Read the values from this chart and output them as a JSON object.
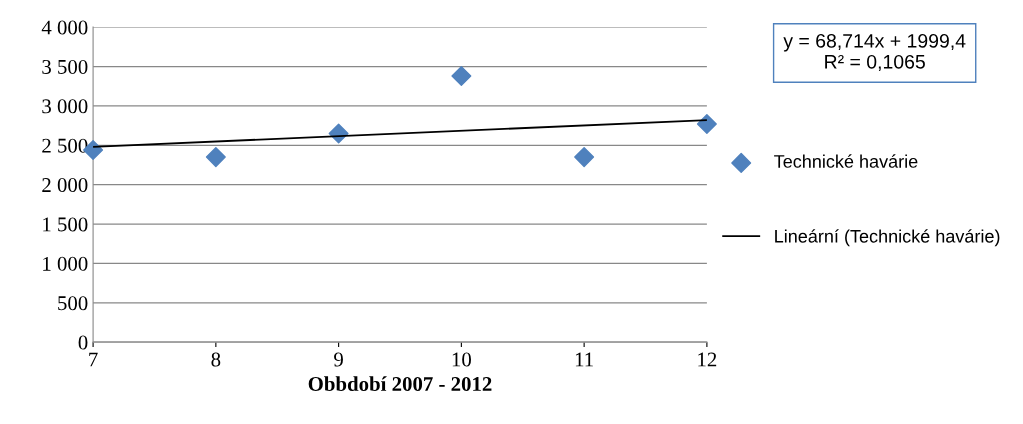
{
  "chart_data": {
    "type": "scatter",
    "xlabel": "Obbdobí 2007 - 2012",
    "x": [
      7,
      8,
      9,
      10,
      11,
      12
    ],
    "series": [
      {
        "name": "Technické havárie",
        "color": "#4f81bd",
        "marker": "diamond",
        "values": [
          2440,
          2350,
          2650,
          3380,
          2350,
          2770
        ]
      },
      {
        "name": "Lineární (Technické havárie)",
        "type": "line",
        "color": "#000000",
        "marker": "none",
        "line_style": "solid",
        "x": [
          7,
          12
        ],
        "values": [
          2480,
          2820
        ]
      }
    ],
    "xlim": [
      7,
      12
    ],
    "xticks": [
      7,
      8,
      9,
      10,
      11,
      12
    ],
    "ylim": [
      0,
      4000
    ],
    "yticks": [
      0,
      500,
      {
        "value": 1000,
        "label": "1 000"
      },
      {
        "value": 1500,
        "label": "1 500"
      },
      {
        "value": 2000,
        "label": "2 000"
      },
      {
        "value": 2500,
        "label": "2 500"
      },
      {
        "value": 3000,
        "label": "3 000"
      },
      {
        "value": 3500,
        "label": "3 500"
      },
      {
        "value": 4000,
        "label": "4 000"
      }
    ],
    "grid": "y",
    "legend": "right",
    "annotations": [
      "y = 68,714x + 1999,4\nR² = 0,1065"
    ]
  }
}
